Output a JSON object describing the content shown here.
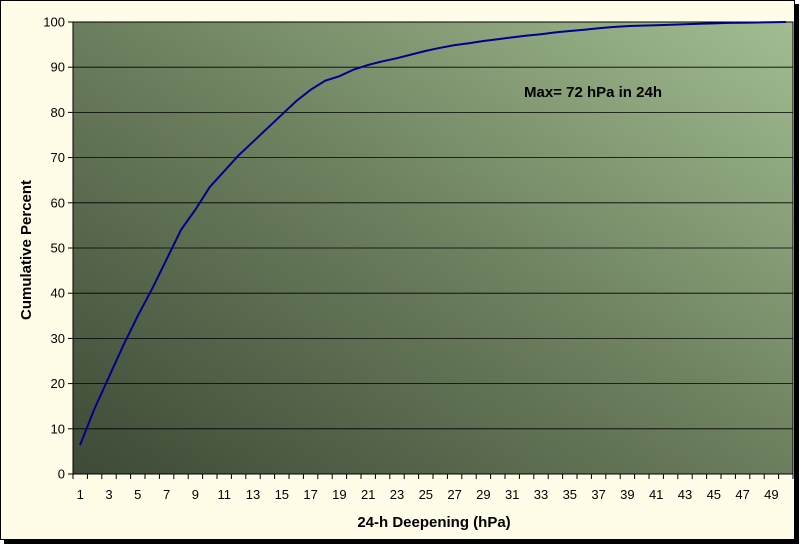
{
  "chart_data": {
    "type": "line",
    "title": "",
    "xlabel": "24-h Deepening (hPa)",
    "ylabel": "Cumulative Percent",
    "annotation": "Max= 72 hPa in 24h",
    "xlim": [
      1,
      50
    ],
    "ylim": [
      0,
      100
    ],
    "x_tick_labels": [
      "1",
      "3",
      "5",
      "7",
      "9",
      "11",
      "13",
      "15",
      "17",
      "19",
      "21",
      "23",
      "25",
      "27",
      "29",
      "31",
      "33",
      "35",
      "37",
      "39",
      "41",
      "43",
      "45",
      "47",
      "49"
    ],
    "y_tick_labels": [
      "0",
      "10",
      "20",
      "30",
      "40",
      "50",
      "60",
      "70",
      "80",
      "90",
      "100"
    ],
    "grid": true,
    "legend": "none",
    "colors": {
      "line": "#00008b",
      "plot_bg_dark": "#3d4a37",
      "plot_bg_light": "#9fb98e",
      "frame_bg": "#fffde8"
    },
    "series": [
      {
        "x": [
          1,
          2,
          3,
          4,
          5,
          6,
          7,
          8,
          9,
          10,
          11,
          12,
          13,
          14,
          15,
          16,
          17,
          18,
          19,
          20,
          21,
          22,
          23,
          24,
          25,
          26,
          27,
          28,
          29,
          30,
          31,
          32,
          33,
          34,
          35,
          36,
          37,
          38,
          39,
          40,
          41,
          42,
          43,
          44,
          45,
          46,
          47,
          48,
          49,
          50
        ],
        "values": [
          6.5,
          14.5,
          21.5,
          28.5,
          35.0,
          41.0,
          47.5,
          54.0,
          58.5,
          63.5,
          67.0,
          70.5,
          73.5,
          76.5,
          79.5,
          82.5,
          85.0,
          87.0,
          88.0,
          89.5,
          90.5,
          91.3,
          92.0,
          92.8,
          93.6,
          94.3,
          94.9,
          95.3,
          95.8,
          96.2,
          96.6,
          97.0,
          97.3,
          97.7,
          98.0,
          98.3,
          98.6,
          98.9,
          99.1,
          99.2,
          99.3,
          99.4,
          99.5,
          99.6,
          99.7,
          99.8,
          99.85,
          99.9,
          99.95,
          100.0
        ]
      }
    ]
  }
}
